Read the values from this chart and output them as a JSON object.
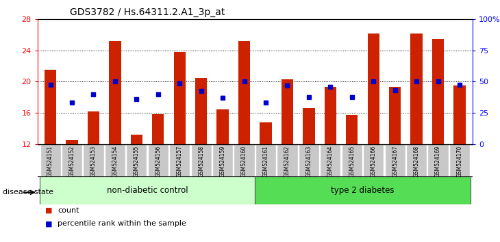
{
  "title": "GDS3782 / Hs.64311.2.A1_3p_at",
  "samples": [
    "GSM524151",
    "GSM524152",
    "GSM524153",
    "GSM524154",
    "GSM524155",
    "GSM524156",
    "GSM524157",
    "GSM524158",
    "GSM524159",
    "GSM524160",
    "GSM524161",
    "GSM524162",
    "GSM524163",
    "GSM524164",
    "GSM524165",
    "GSM524166",
    "GSM524167",
    "GSM524168",
    "GSM524169",
    "GSM524170"
  ],
  "bar_values": [
    21.5,
    12.5,
    16.2,
    25.2,
    13.2,
    15.8,
    23.8,
    20.5,
    16.4,
    25.2,
    14.8,
    20.3,
    16.6,
    19.3,
    15.7,
    26.2,
    19.3,
    26.2,
    25.5,
    19.5
  ],
  "dot_values": [
    19.6,
    17.3,
    18.4,
    20.0,
    17.8,
    18.4,
    19.8,
    18.8,
    17.9,
    20.0,
    17.3,
    19.5,
    18.0,
    19.3,
    18.0,
    20.0,
    18.9,
    20.0,
    20.0,
    19.6
  ],
  "bar_color": "#CC2200",
  "dot_color": "#0000CC",
  "ylim_left": [
    12,
    28
  ],
  "ylim_right": [
    0,
    100
  ],
  "yticks_left": [
    12,
    16,
    20,
    24,
    28
  ],
  "yticks_right": [
    0,
    25,
    50,
    75,
    100
  ],
  "group1_label": "non-diabetic control",
  "group2_label": "type 2 diabetes",
  "group1_color": "#CCFFCC",
  "group2_color": "#55DD55",
  "group1_count": 10,
  "group2_count": 10,
  "legend_count": "count",
  "legend_percentile": "percentile rank within the sample",
  "disease_state_label": "disease state",
  "background_color": "#ffffff",
  "plot_bg_color": "#ffffff",
  "tick_label_bg": "#C8C8C8"
}
